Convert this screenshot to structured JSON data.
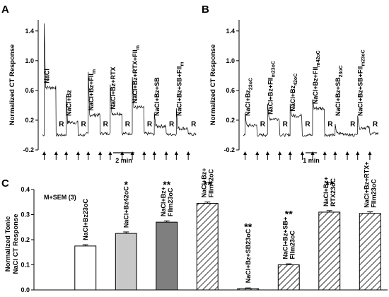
{
  "panels": {
    "A": {
      "letter": "A",
      "ylabel": "Normalized CT Response",
      "yticks": [
        -0.2,
        0.2,
        0.6,
        1.0,
        1.4
      ],
      "ylim": [
        -0.2,
        1.55
      ],
      "scalebar": "2 min",
      "stimuli": [
        "NaCl",
        "NaCl+Bz",
        "NaCl+Bz+FII_m",
        "NaCl+Bz+RTX",
        "NaCl+Bz+RTX+FII_m",
        "NaCl+Bz+SB",
        "NaCl+Bz+SB+FII_m"
      ],
      "rinse_label": "R"
    },
    "B": {
      "letter": "B",
      "ylabel": "Normalized CT Response",
      "yticks": [
        -0.2,
        0.2,
        0.6,
        1.0,
        1.4
      ],
      "ylim": [
        -0.2,
        1.55
      ],
      "scalebar": "1 min",
      "stimuli": [
        "NaCl+Bz_23oC",
        "NaCl+Bz+FII_m23oC",
        "NaCl+Bz_42oC",
        "NaCl+Bz+FII_m42oC",
        "NaCl+Bz+SB_23oC",
        "NaCl+Bz+SB+FII_m23oC"
      ],
      "rinse_label": "R"
    },
    "C": {
      "letter": "C",
      "note": "M+SEM (3)"
    }
  },
  "chart_data": [
    {
      "type": "line",
      "panel": "A",
      "title": "",
      "xlabel": "",
      "ylabel": "Normalized CT Response",
      "ylim": [
        -0.2,
        1.55
      ],
      "segments": [
        {
          "stimulus": "NaCl",
          "phasic_peak": 1.5,
          "tonic": 0.64,
          "rinse": 0.0
        },
        {
          "stimulus": "NaCl+Bz",
          "phasic_peak": 0.52,
          "tonic": 0.17,
          "rinse": 0.0
        },
        {
          "stimulus": "NaCl+Bz+FII_m",
          "phasic_peak": 0.85,
          "tonic": 0.27,
          "rinse": 0.02
        },
        {
          "stimulus": "NaCl+Bz+RTX",
          "phasic_peak": 0.68,
          "tonic": 0.29,
          "rinse": 0.02
        },
        {
          "stimulus": "NaCl+Bz+RTX+FII_m",
          "phasic_peak": 0.78,
          "tonic": 0.37,
          "rinse": 0.02
        },
        {
          "stimulus": "NaCl+Bz+SB",
          "phasic_peak": 0.3,
          "tonic": 0.12,
          "rinse": 0.01
        },
        {
          "stimulus": "NaCl+Bz+SB+FII_m",
          "phasic_peak": 0.36,
          "tonic": 0.09,
          "rinse": 0.01
        }
      ]
    },
    {
      "type": "line",
      "panel": "B",
      "title": "",
      "xlabel": "",
      "ylabel": "Normalized CT Response",
      "ylim": [
        -0.2,
        1.55
      ],
      "segments": [
        {
          "stimulus": "NaCl+Bz_23oC",
          "phasic_peak": 0.3,
          "tonic": 0.13,
          "rinse": 0.0
        },
        {
          "stimulus": "NaCl+Bz+FII_m23oC",
          "phasic_peak": 0.42,
          "tonic": 0.22,
          "rinse": 0.0
        },
        {
          "stimulus": "NaCl+Bz_42oC",
          "phasic_peak": 0.42,
          "tonic": 0.26,
          "rinse": 0.0
        },
        {
          "stimulus": "NaCl+Bz+FII_m42oC",
          "phasic_peak": 0.48,
          "tonic": 0.36,
          "rinse": 0.0
        },
        {
          "stimulus": "NaCl+Bz+SB_23oC",
          "phasic_peak": 0.15,
          "tonic": 0.02,
          "rinse": 0.0
        },
        {
          "stimulus": "NaCl+Bz+SB+FII_m23oC",
          "phasic_peak": 0.26,
          "tonic": 0.1,
          "rinse": 0.02
        }
      ]
    },
    {
      "type": "bar",
      "panel": "C",
      "title": "",
      "xlabel": "",
      "ylabel": "Normalized Tonic NaCl CT Response",
      "yticks": [
        0.0,
        0.1,
        0.2,
        0.3,
        0.4
      ],
      "ylim": [
        0,
        0.4
      ],
      "categories": [
        "NaCl+Bz23oC",
        "NaCl+Bz42oC",
        "NaCl+Bz+FIIm23oC",
        "NaCl+Bz+FIIm42oC",
        "NaCl+Bz+SB23oC",
        "NaCl+Bz+SB+FIIm23oC",
        "NaCl+Bz+RTX23oC",
        "NaCl+Bz+RTX+FIIm23oC"
      ],
      "category_lines": [
        [
          "NaCl+Bz23oC"
        ],
        [
          "NaCl+Bz42oC"
        ],
        [
          "NaCl+Bz+",
          "FIIm23oC"
        ],
        [
          "NaCl+Bz+",
          "FIIm42oC"
        ],
        [
          "NaCl+Bz+SB23oC"
        ],
        [
          "NaCl+Bz+SB+",
          "FIIm23oC"
        ],
        [
          "NaCl+Bz+",
          "RTX23oC"
        ],
        [
          "NaCl+Bz+RTX+",
          "FIIm23oC"
        ]
      ],
      "values": [
        0.175,
        0.225,
        0.27,
        0.345,
        0.005,
        0.1,
        0.31,
        0.305
      ],
      "errors": [
        0.005,
        0.006,
        0.005,
        0.005,
        0.003,
        0.004,
        0.006,
        0.006
      ],
      "significance": [
        "",
        "*",
        "**",
        "**",
        "**",
        "**",
        "**",
        ""
      ],
      "fills": [
        "white",
        "#c8c8c8",
        "#7f7f7f",
        "hatch",
        "hatch",
        "hatch",
        "hatch",
        "hatch"
      ]
    }
  ]
}
